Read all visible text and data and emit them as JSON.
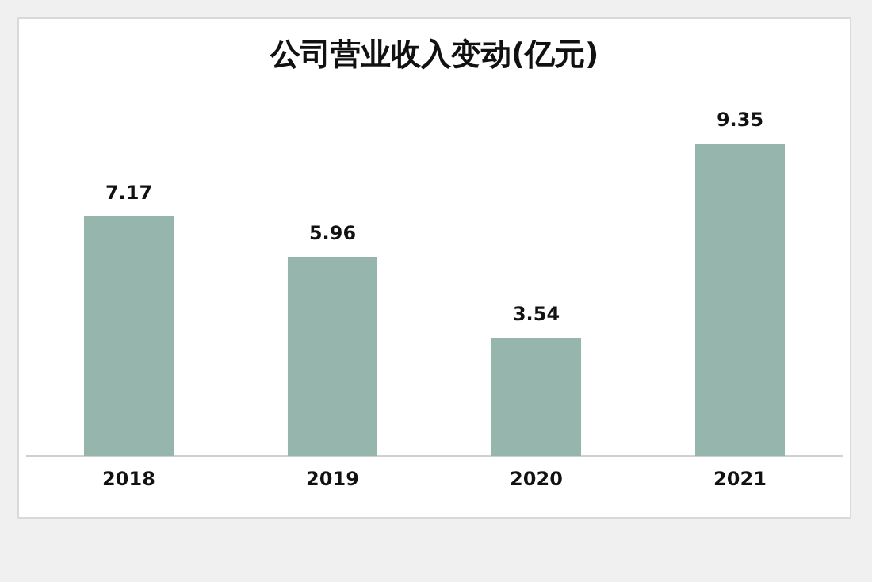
{
  "chart_data": {
    "type": "bar",
    "title": "公司营业收入变动(亿元)",
    "categories": [
      "2018",
      "2019",
      "2020",
      "2021"
    ],
    "values": [
      7.17,
      5.96,
      3.54,
      9.35
    ],
    "color": "#96b5ad",
    "data_labels": true,
    "grid": false,
    "legend": false
  }
}
